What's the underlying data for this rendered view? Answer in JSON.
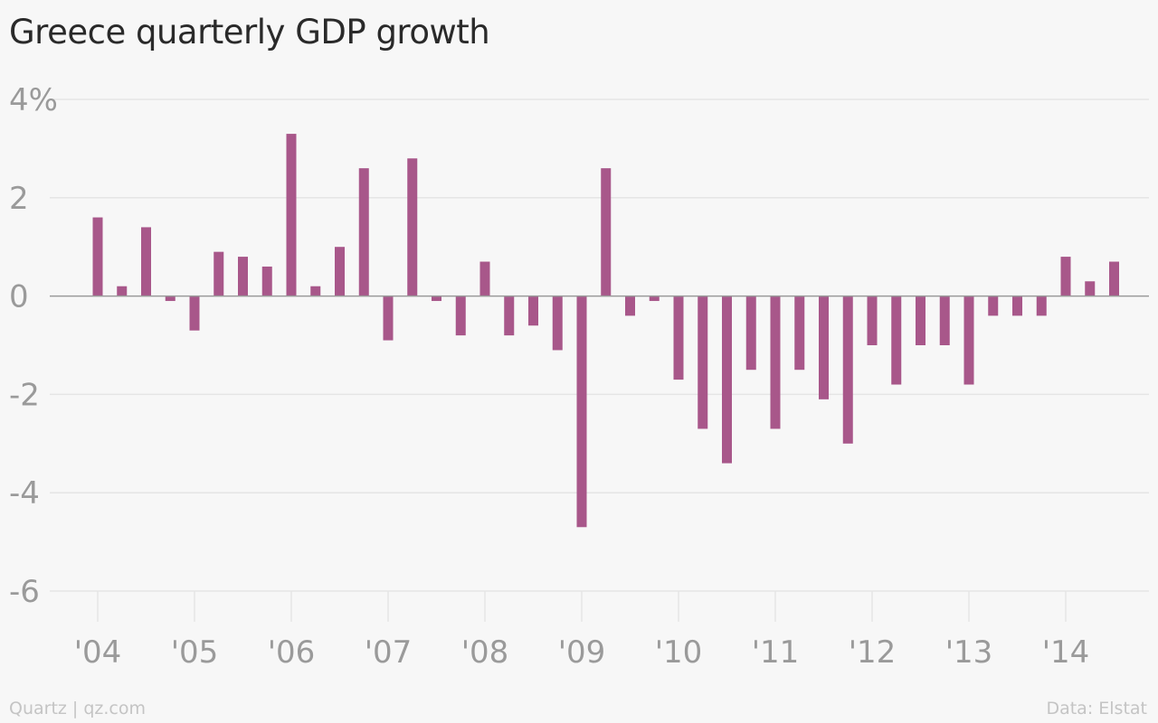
{
  "header": {
    "title": "Greece quarterly GDP growth"
  },
  "footer": {
    "source_left": "Quartz | qz.com",
    "source_right": "Data: Elstat"
  },
  "colors": {
    "bar": "#a8578a",
    "grid": "#e5e5e5",
    "zero_line": "#9a9a9a",
    "tick_text": "#9a9a9a",
    "background": "#f7f7f7"
  },
  "chart_data": {
    "type": "bar",
    "title": "Greece quarterly GDP growth",
    "xlabel": "",
    "ylabel": "",
    "ylim": [
      -6,
      4
    ],
    "y_ticks": [
      4,
      2,
      0,
      -2,
      -4,
      -6
    ],
    "y_tick_labels": [
      "4%",
      "2",
      "0",
      "-2",
      "-4",
      "-6"
    ],
    "x_tick_labels": [
      "'04",
      "'05",
      "'06",
      "'07",
      "'08",
      "'09",
      "'10",
      "'11",
      "'12",
      "'13",
      "'14"
    ],
    "grid": true,
    "categories": [
      "2004 Q1",
      "2004 Q2",
      "2004 Q3",
      "2004 Q4",
      "2005 Q1",
      "2005 Q2",
      "2005 Q3",
      "2005 Q4",
      "2006 Q1",
      "2006 Q2",
      "2006 Q3",
      "2006 Q4",
      "2007 Q1",
      "2007 Q2",
      "2007 Q3",
      "2007 Q4",
      "2008 Q1",
      "2008 Q2",
      "2008 Q3",
      "2008 Q4",
      "2009 Q1",
      "2009 Q2",
      "2009 Q3",
      "2009 Q4",
      "2010 Q1",
      "2010 Q2",
      "2010 Q3",
      "2010 Q4",
      "2011 Q1",
      "2011 Q2",
      "2011 Q3",
      "2011 Q4",
      "2012 Q1",
      "2012 Q2",
      "2012 Q3",
      "2012 Q4",
      "2013 Q1",
      "2013 Q2",
      "2013 Q3",
      "2013 Q4",
      "2014 Q1",
      "2014 Q2",
      "2014 Q3"
    ],
    "values": [
      1.6,
      0.2,
      1.4,
      -0.1,
      -0.7,
      0.9,
      0.8,
      0.6,
      3.3,
      0.2,
      1.0,
      2.6,
      -0.9,
      2.8,
      -0.1,
      -0.8,
      0.7,
      -0.8,
      -0.6,
      -1.1,
      -4.7,
      2.6,
      -0.4,
      -0.1,
      -1.7,
      -2.7,
      -3.4,
      -1.5,
      -2.7,
      -1.5,
      -2.1,
      -3.0,
      -1.0,
      -1.8,
      -1.0,
      -1.0,
      -1.8,
      -0.4,
      -0.4,
      -0.4,
      0.8,
      0.3,
      0.7
    ]
  }
}
